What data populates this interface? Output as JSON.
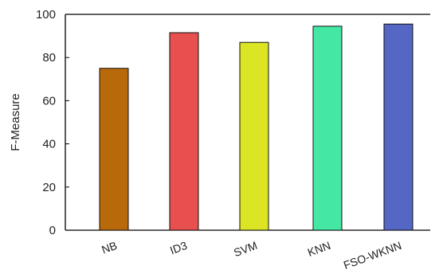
{
  "chart_data": {
    "type": "bar",
    "categories": [
      "NB",
      "ID3",
      "SVM",
      "KNN",
      "FSO-WKNN"
    ],
    "values": [
      75,
      91.5,
      87,
      94.5,
      95.5
    ],
    "colors": [
      "#b8690a",
      "#e85050",
      "#dbe523",
      "#44e8a4",
      "#5567c4"
    ],
    "title": "",
    "xlabel": "",
    "ylabel": "F-Measure",
    "ylim": [
      0,
      100
    ],
    "yticks": [
      0,
      20,
      40,
      60,
      80,
      100
    ],
    "grid": false
  }
}
